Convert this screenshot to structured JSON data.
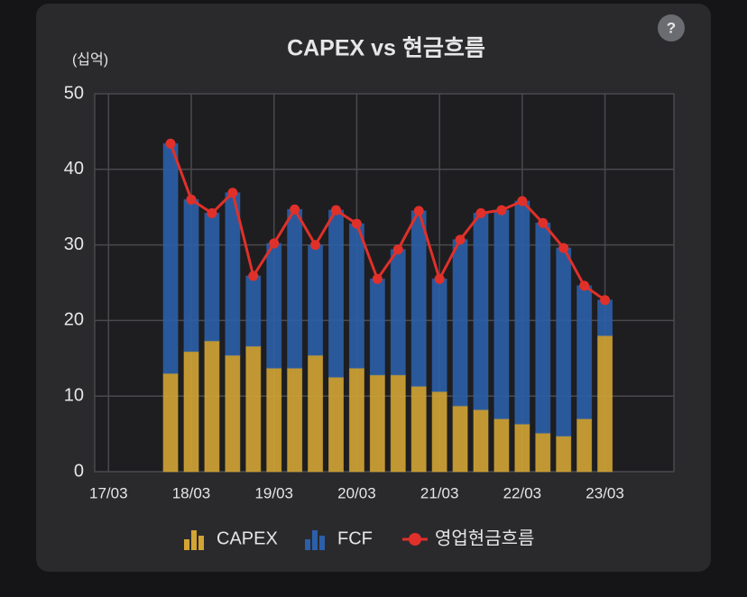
{
  "chart_data": {
    "type": "bar",
    "title": "CAPEX vs 현금흐름",
    "y_label": "(십억)",
    "help_button": "?",
    "x": [
      "17/12",
      "18/03",
      "18/06",
      "18/09",
      "18/12",
      "19/03",
      "19/06",
      "19/09",
      "19/12",
      "20/03",
      "20/06",
      "20/09",
      "20/12",
      "21/03",
      "21/06",
      "21/09",
      "21/12",
      "22/03",
      "22/06",
      "22/09",
      "22/12",
      "23/03"
    ],
    "series": [
      {
        "name": "CAPEX",
        "type": "bar",
        "color": "#d1a434",
        "values": [
          13.0,
          15.9,
          17.3,
          15.4,
          16.6,
          13.7,
          13.7,
          15.4,
          12.5,
          13.7,
          12.8,
          12.8,
          11.3,
          10.6,
          8.7,
          8.2,
          7.0,
          6.3,
          5.1,
          4.7,
          7.0,
          18.0
        ]
      },
      {
        "name": "FCF",
        "type": "bar",
        "color": "#2b5fa8",
        "values": [
          30.4,
          20.1,
          16.9,
          21.5,
          9.3,
          16.5,
          21.0,
          14.6,
          22.1,
          19.1,
          12.7,
          16.6,
          23.2,
          14.9,
          22.0,
          26.0,
          27.6,
          29.5,
          27.8,
          24.9,
          17.6,
          4.7
        ]
      },
      {
        "name": "영업현금흐름",
        "type": "line",
        "color": "#e0302a",
        "values": [
          43.4,
          36.0,
          34.2,
          36.9,
          25.9,
          30.2,
          34.7,
          30.0,
          34.6,
          32.8,
          25.5,
          29.4,
          34.5,
          25.5,
          30.7,
          34.2,
          34.6,
          35.8,
          32.9,
          29.6,
          24.6,
          22.7
        ]
      }
    ],
    "xlim": [
      "17/01",
      "24/01"
    ],
    "xticks": [
      "17/03",
      "18/03",
      "19/03",
      "20/03",
      "21/03",
      "22/03",
      "23/03"
    ],
    "ylim": [
      0,
      50
    ],
    "yticks": [
      0,
      10,
      20,
      30,
      40,
      50
    ],
    "grid": true,
    "legend": "bottom"
  }
}
